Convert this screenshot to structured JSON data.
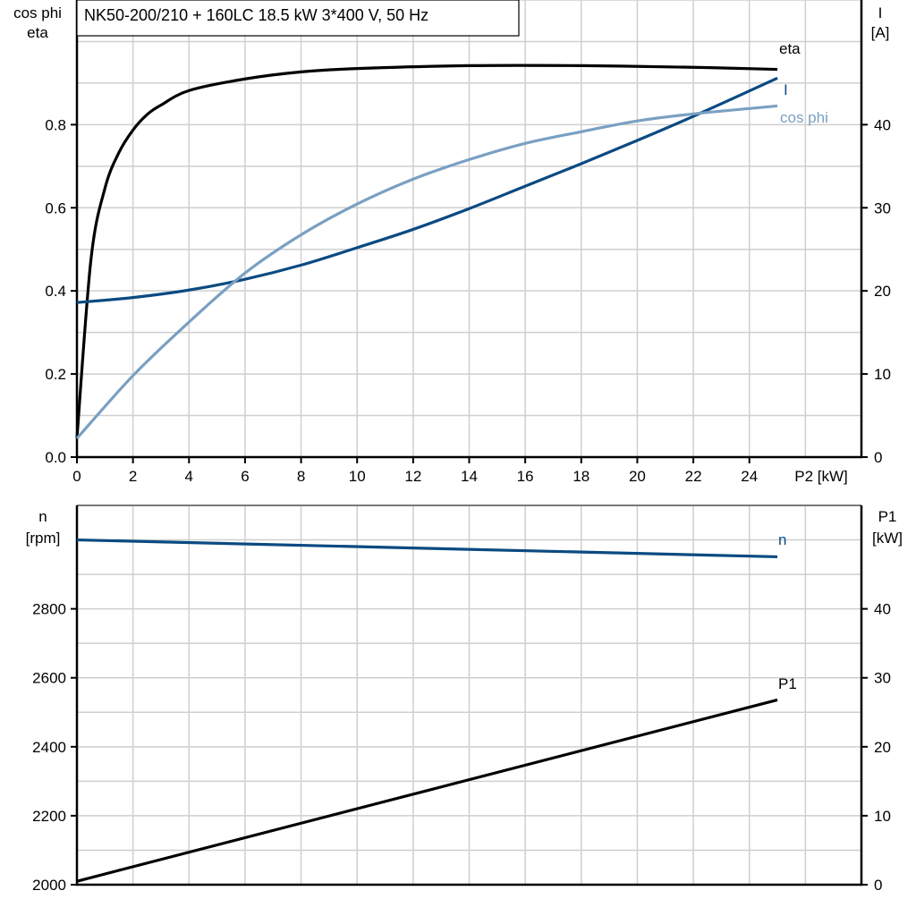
{
  "title": "NK50-200/210 + 160LC   18.5 kW   3*400 V, 50 Hz",
  "colors": {
    "eta": "#000000",
    "I": "#0b4a82",
    "cos_phi": "#7aa0c2",
    "n": "#0b4a82",
    "P1": "#000000"
  },
  "chart_data": [
    {
      "type": "line",
      "xlabel": "P2 [kW]",
      "ylabel_left": [
        "cos phi",
        "eta"
      ],
      "ylabel_right": [
        "I",
        "[A]"
      ],
      "xlim": [
        0,
        28
      ],
      "ylim_left": [
        0,
        1.1
      ],
      "ylim_right": [
        0,
        55
      ],
      "xticks": [
        0,
        2,
        4,
        6,
        8,
        10,
        12,
        14,
        16,
        18,
        20,
        22,
        24
      ],
      "yticks_left": [
        "0.0",
        "0.2",
        "0.4",
        "0.6",
        "0.8"
      ],
      "yticks_right": [
        "0",
        "10",
        "20",
        "30",
        "40"
      ],
      "grid": true,
      "series": [
        {
          "name": "eta",
          "axis": "left",
          "color_key": "eta",
          "x": [
            0,
            0.5,
            1,
            1.5,
            2,
            2.5,
            3,
            4,
            6,
            8,
            10,
            14,
            18,
            22,
            25
          ],
          "y": [
            0.045,
            0.475,
            0.647,
            0.733,
            0.787,
            0.824,
            0.847,
            0.882,
            0.91,
            0.927,
            0.935,
            0.942,
            0.942,
            0.938,
            0.933
          ]
        },
        {
          "name": "I",
          "axis": "right",
          "color_key": "I",
          "x": [
            0,
            2,
            4,
            6,
            8,
            10,
            12,
            14,
            16,
            18,
            20,
            22,
            25
          ],
          "y": [
            18.6,
            19.2,
            20.1,
            21.4,
            23.1,
            25.2,
            27.4,
            29.9,
            32.6,
            35.3,
            38.1,
            41.0,
            45.6
          ]
        },
        {
          "name": "cos phi",
          "axis": "left",
          "color_key": "cos_phi",
          "x": [
            0,
            2,
            4,
            6,
            8,
            10,
            12,
            14,
            16,
            18,
            20,
            22,
            25
          ],
          "y": [
            0.045,
            0.196,
            0.325,
            0.443,
            0.535,
            0.609,
            0.669,
            0.716,
            0.755,
            0.783,
            0.809,
            0.826,
            0.845
          ]
        }
      ]
    },
    {
      "type": "line",
      "ylabel_left": [
        "n",
        "[rpm]"
      ],
      "ylabel_right": [
        "P1",
        "[kW]"
      ],
      "xlim": [
        0,
        28
      ],
      "ylim_left": [
        2000,
        3100
      ],
      "ylim_right": [
        0,
        55
      ],
      "yticks_left": [
        "2000",
        "2200",
        "2400",
        "2600",
        "2800"
      ],
      "yticks_right": [
        "0",
        "10",
        "20",
        "30",
        "40"
      ],
      "grid": true,
      "series": [
        {
          "name": "n",
          "axis": "left",
          "color_key": "n",
          "x": [
            0,
            25
          ],
          "y": [
            3000,
            2951
          ]
        },
        {
          "name": "P1",
          "axis": "right",
          "color_key": "P1",
          "x": [
            0,
            25
          ],
          "y": [
            0.5,
            26.8
          ]
        }
      ]
    }
  ]
}
